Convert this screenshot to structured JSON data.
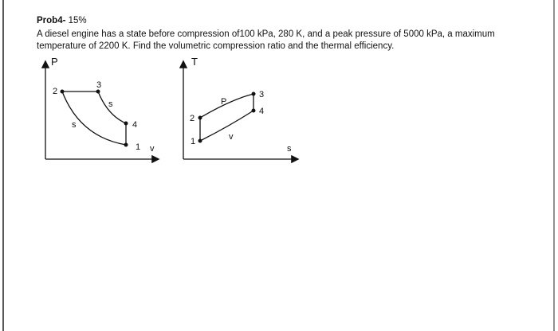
{
  "header": {
    "label": "Prob4-",
    "points": "15%"
  },
  "problem": {
    "lines": [
      "A diesel engine has a state before compression of100 kPa, 280 K, and a peak pressure of 5000 kPa, a maximum",
      "temperature of 2200 K. Find the volumetric compression ratio and the thermal efficiency."
    ]
  },
  "pv_diagram": {
    "y_axis": "P",
    "x_axis": "v",
    "points": [
      "2",
      "3",
      "4",
      "1"
    ],
    "process_labels": [
      "s",
      "s"
    ]
  },
  "ts_diagram": {
    "y_axis": "T",
    "x_axis": "s",
    "points": [
      "2",
      "3",
      "4",
      "1"
    ],
    "process_labels": [
      "P",
      "v"
    ]
  }
}
